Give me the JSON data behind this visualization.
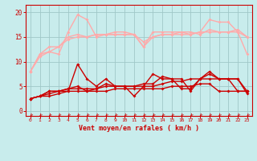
{
  "x": [
    0,
    1,
    2,
    3,
    4,
    5,
    6,
    7,
    8,
    9,
    10,
    11,
    12,
    13,
    14,
    15,
    16,
    17,
    18,
    19,
    20,
    21,
    22,
    23
  ],
  "series": [
    {
      "color": "#ffaaaa",
      "lw": 1.0,
      "ms": 2.0,
      "y": [
        8,
        11.5,
        12,
        11.5,
        16,
        19.5,
        18.5,
        15,
        15.5,
        16,
        16,
        15.5,
        13,
        16,
        16,
        16,
        16,
        15.5,
        16,
        18.5,
        18,
        18,
        16,
        11.5
      ]
    },
    {
      "color": "#ffaaaa",
      "lw": 1.0,
      "ms": 2.0,
      "y": [
        8,
        11.5,
        13,
        13,
        15,
        15.5,
        15,
        15.5,
        15.5,
        15.5,
        15.5,
        15.5,
        13,
        15,
        15.5,
        15.5,
        16,
        16,
        15.5,
        16.5,
        16,
        16,
        16.5,
        15
      ]
    },
    {
      "color": "#ffaaaa",
      "lw": 1.0,
      "ms": 2.0,
      "y": [
        8,
        11,
        12,
        13,
        14.5,
        15,
        15,
        15.5,
        15.5,
        15.5,
        15.5,
        15.5,
        14,
        15,
        15.5,
        15.5,
        15.5,
        15.5,
        16,
        16,
        16,
        16,
        16,
        15
      ]
    },
    {
      "color": "#cc0000",
      "lw": 1.0,
      "ms": 2.0,
      "y": [
        2.5,
        3,
        4,
        4,
        4,
        9.5,
        6.5,
        5,
        6.5,
        5,
        5,
        3,
        5,
        7.5,
        6.5,
        6.5,
        6.5,
        4,
        6.5,
        8,
        6.5,
        6.5,
        6.5,
        3.5
      ]
    },
    {
      "color": "#cc0000",
      "lw": 1.0,
      "ms": 2.0,
      "y": [
        2.5,
        3,
        4,
        4,
        4.5,
        5,
        4,
        4.5,
        5.5,
        5,
        5,
        5,
        5.5,
        5.5,
        7,
        6.5,
        4.5,
        4.5,
        6.5,
        7.5,
        6.5,
        6.5,
        6.5,
        4
      ]
    },
    {
      "color": "#cc0000",
      "lw": 1.0,
      "ms": 2.0,
      "y": [
        2.5,
        3,
        3.5,
        4,
        4.5,
        4.5,
        4.5,
        4.5,
        5,
        5,
        5,
        5,
        5,
        5,
        5.5,
        6,
        6,
        6.5,
        6.5,
        6.5,
        6.5,
        6.5,
        4,
        4
      ]
    },
    {
      "color": "#cc0000",
      "lw": 1.0,
      "ms": 2.0,
      "y": [
        2.5,
        3,
        3,
        3.5,
        4,
        4,
        4,
        4,
        4,
        4.5,
        4.5,
        4.5,
        4.5,
        4.5,
        4.5,
        5,
        5,
        5,
        5.5,
        5.5,
        4,
        4,
        4,
        4
      ]
    }
  ],
  "xlabel": "Vent moyen/en rafales ( km/h )",
  "xlim": [
    -0.5,
    23.5
  ],
  "ylim": [
    -1.0,
    21.5
  ],
  "yticks": [
    0,
    5,
    10,
    15,
    20
  ],
  "xticks": [
    0,
    1,
    2,
    3,
    4,
    5,
    6,
    7,
    8,
    9,
    10,
    11,
    12,
    13,
    14,
    15,
    16,
    17,
    18,
    19,
    20,
    21,
    22,
    23
  ],
  "bg_color": "#c8ecec",
  "grid_color": "#a0c8c8",
  "label_color": "#cc0000",
  "tick_color": "#cc0000",
  "spine_color": "#cc0000"
}
